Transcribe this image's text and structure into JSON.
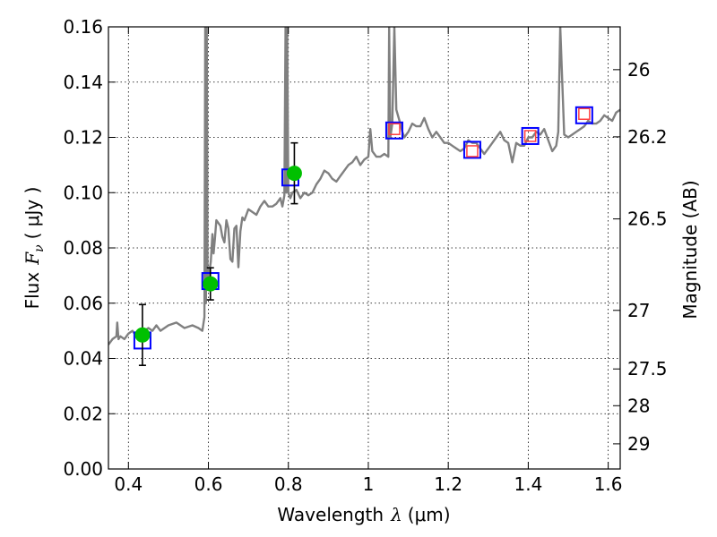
{
  "chart_data": {
    "type": "line",
    "xlabel_prefix": "Wavelength",
    "xlabel_var": "λ",
    "xlabel_unit": "(μm)",
    "ylabel_prefix": "Flux",
    "ylabel_var": "F",
    "ylabel_sub": "ν",
    "ylabel_unit": "( μJy )",
    "y2label": "Magnitude (AB)",
    "xlim": [
      0.35,
      1.63
    ],
    "ylim": [
      0.0,
      0.16
    ],
    "x_ticks": [
      0.4,
      0.6,
      0.8,
      1.0,
      1.2,
      1.4,
      1.6
    ],
    "x_tick_labels": [
      "0.4",
      "0.6",
      "0.8",
      "1",
      "1.2",
      "1.4",
      "1.6"
    ],
    "y_ticks": [
      0.0,
      0.02,
      0.04,
      0.06,
      0.08,
      0.1,
      0.12,
      0.14,
      0.16
    ],
    "y_tick_labels": [
      "0.00",
      "0.02",
      "0.04",
      "0.06",
      "0.08",
      "0.10",
      "0.12",
      "0.14",
      "0.16"
    ],
    "y2_ticks": [
      {
        "label": "26",
        "flux": 0.1445
      },
      {
        "label": "26.2",
        "flux": 0.1202
      },
      {
        "label": "26.5",
        "flux": 0.0905
      },
      {
        "label": "27",
        "flux": 0.0574
      },
      {
        "label": "27.5",
        "flux": 0.0362
      },
      {
        "label": "28",
        "flux": 0.0229
      },
      {
        "label": "29",
        "flux": 0.0091
      }
    ],
    "grid": true,
    "colors": {
      "spectrum": "#808080",
      "model_box": "#0000ff",
      "inner_box": "#ff4040",
      "observed": "#00c000",
      "error": "#000000"
    },
    "series": [
      {
        "kind": "spectrum",
        "x": [
          0.35,
          0.36,
          0.37,
          0.372,
          0.375,
          0.38,
          0.39,
          0.4,
          0.41,
          0.42,
          0.43,
          0.44,
          0.45,
          0.46,
          0.47,
          0.48,
          0.5,
          0.52,
          0.54,
          0.56,
          0.575,
          0.585,
          0.59,
          0.592,
          0.594,
          0.596,
          0.598,
          0.6,
          0.603,
          0.606,
          0.61,
          0.613,
          0.616,
          0.62,
          0.63,
          0.635,
          0.64,
          0.645,
          0.65,
          0.655,
          0.66,
          0.665,
          0.67,
          0.675,
          0.68,
          0.685,
          0.69,
          0.7,
          0.71,
          0.72,
          0.73,
          0.74,
          0.75,
          0.76,
          0.77,
          0.78,
          0.785,
          0.79,
          0.793,
          0.795,
          0.797,
          0.8,
          0.805,
          0.81,
          0.82,
          0.83,
          0.84,
          0.85,
          0.86,
          0.87,
          0.88,
          0.89,
          0.9,
          0.91,
          0.92,
          0.93,
          0.94,
          0.95,
          0.96,
          0.97,
          0.98,
          0.99,
          1.0,
          1.005,
          1.01,
          1.02,
          1.03,
          1.04,
          1.05,
          1.052,
          1.055,
          1.06,
          1.065,
          1.07,
          1.08,
          1.085,
          1.09,
          1.1,
          1.11,
          1.12,
          1.13,
          1.14,
          1.15,
          1.16,
          1.17,
          1.18,
          1.19,
          1.2,
          1.21,
          1.22,
          1.23,
          1.24,
          1.25,
          1.26,
          1.27,
          1.28,
          1.29,
          1.3,
          1.31,
          1.32,
          1.33,
          1.34,
          1.35,
          1.36,
          1.37,
          1.38,
          1.39,
          1.4,
          1.41,
          1.42,
          1.43,
          1.44,
          1.45,
          1.46,
          1.465,
          1.47,
          1.475,
          1.48,
          1.49,
          1.5,
          1.51,
          1.52,
          1.53,
          1.54,
          1.55,
          1.56,
          1.57,
          1.58,
          1.59,
          1.6,
          1.61,
          1.62,
          1.63
        ],
        "y": [
          0.045,
          0.047,
          0.048,
          0.053,
          0.047,
          0.048,
          0.047,
          0.049,
          0.05,
          0.048,
          0.05,
          0.05,
          0.051,
          0.05,
          0.052,
          0.05,
          0.052,
          0.053,
          0.051,
          0.052,
          0.051,
          0.05,
          0.055,
          0.16,
          0.06,
          0.16,
          0.065,
          0.068,
          0.072,
          0.075,
          0.085,
          0.078,
          0.083,
          0.09,
          0.088,
          0.084,
          0.082,
          0.09,
          0.087,
          0.076,
          0.075,
          0.087,
          0.088,
          0.073,
          0.086,
          0.091,
          0.09,
          0.094,
          0.093,
          0.092,
          0.095,
          0.097,
          0.095,
          0.095,
          0.096,
          0.098,
          0.095,
          0.099,
          0.16,
          0.1,
          0.16,
          0.1,
          0.098,
          0.1,
          0.101,
          0.098,
          0.1,
          0.099,
          0.1,
          0.103,
          0.105,
          0.108,
          0.107,
          0.105,
          0.104,
          0.106,
          0.108,
          0.11,
          0.111,
          0.113,
          0.11,
          0.112,
          0.113,
          0.123,
          0.115,
          0.113,
          0.113,
          0.114,
          0.113,
          0.16,
          0.12,
          0.125,
          0.16,
          0.13,
          0.125,
          0.122,
          0.12,
          0.122,
          0.125,
          0.124,
          0.124,
          0.127,
          0.123,
          0.12,
          0.122,
          0.12,
          0.118,
          0.118,
          0.117,
          0.116,
          0.115,
          0.116,
          0.119,
          0.118,
          0.118,
          0.116,
          0.114,
          0.116,
          0.118,
          0.12,
          0.122,
          0.119,
          0.118,
          0.111,
          0.118,
          0.117,
          0.117,
          0.12,
          0.12,
          0.122,
          0.121,
          0.123,
          0.119,
          0.115,
          0.116,
          0.117,
          0.122,
          0.16,
          0.121,
          0.12,
          0.121,
          0.122,
          0.123,
          0.124,
          0.126,
          0.125,
          0.125,
          0.126,
          0.128,
          0.127,
          0.126,
          0.129,
          0.13
        ]
      },
      {
        "kind": "model_photometry",
        "x": [
          0.435,
          0.605,
          0.805,
          1.065,
          1.26,
          1.405,
          1.54
        ],
        "y": [
          0.0465,
          0.068,
          0.1055,
          0.1225,
          0.1155,
          0.1205,
          0.128
        ]
      },
      {
        "kind": "model_photometry_inner",
        "x": [
          1.065,
          1.26,
          1.405,
          1.54
        ],
        "y": [
          0.123,
          0.115,
          0.1205,
          0.1285
        ]
      },
      {
        "kind": "observed",
        "x": [
          0.435,
          0.605,
          0.815
        ],
        "y": [
          0.0485,
          0.067,
          0.107
        ],
        "yerr": [
          0.011,
          0.0058,
          0.011
        ]
      }
    ]
  }
}
